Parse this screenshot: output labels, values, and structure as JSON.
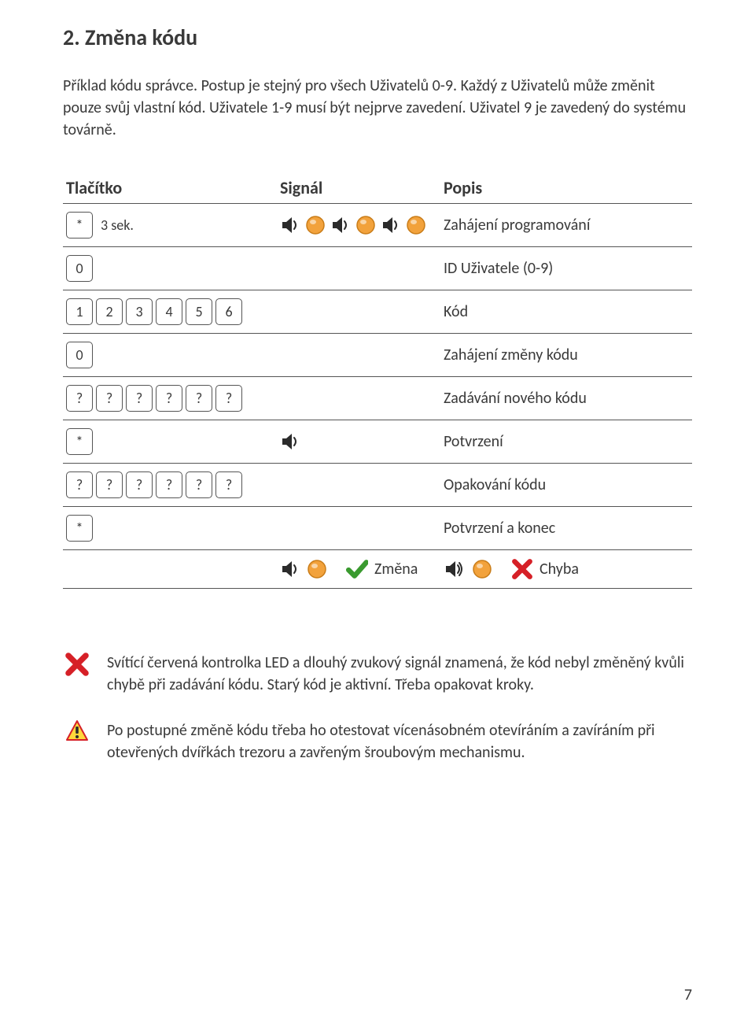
{
  "title": "2. Změna kódu",
  "intro": "Příklad kódu správce. Postup je stejný pro všech Uživatelů 0-9. Každý z Uživatelů může změnit pouze svůj vlastní kód. Uživatele 1-9 musí být nejprve zavedení. Uživatel 9 je zavedený do systému továrně.",
  "table": {
    "head": {
      "button": "Tlačítko",
      "signal": "Signál",
      "desc": "Popis"
    },
    "rows": [
      {
        "keys": [
          "*"
        ],
        "suffix": "3 sek.",
        "signal": "sp3",
        "desc": "Zahájení programování"
      },
      {
        "keys": [
          "0"
        ],
        "signal": "",
        "desc": "ID Uživatele (0-9)"
      },
      {
        "keys": [
          "1",
          "2",
          "3",
          "4",
          "5",
          "6"
        ],
        "signal": "",
        "desc": "Kód"
      },
      {
        "keys": [
          "0"
        ],
        "signal": "",
        "desc": "Zahájení změny kódu"
      },
      {
        "keys": [
          "?",
          "?",
          "?",
          "?",
          "?",
          "?"
        ],
        "signal": "",
        "desc": "Zadávání nového kódu"
      },
      {
        "keys": [
          "*"
        ],
        "signal": "sp1",
        "desc": "Potvrzení"
      },
      {
        "keys": [
          "?",
          "?",
          "?",
          "?",
          "?",
          "?"
        ],
        "signal": "",
        "desc": "Opakování kódu"
      },
      {
        "keys": [
          "*"
        ],
        "signal": "",
        "desc": "Potvrzení a konec"
      }
    ],
    "result": {
      "ok_label": "Změna",
      "err_label": "Chyba"
    }
  },
  "notes": {
    "n1": "Svítící červená kontrolka LED a dlouhý zvukový signál znamená, že kód nebyl změněný kvůli chybě při zadávání kódu. Starý kód je aktivní. Třeba opakovat kroky.",
    "n2": "Po postupné změně kódu třeba ho otestovat vícenásobném otevíráním a zavíráním při otevřených dvířkách trezoru a zavřeným šroubovým mechanismu."
  },
  "page_number": "7",
  "colors": {
    "led": "#f2a23c",
    "led_stroke": "#c97c18",
    "speaker": "#2b2b2b",
    "check": "#3a9a2f",
    "cross": "#d62027",
    "warn_fill": "#ffd83b",
    "warn_stroke": "#d62027"
  }
}
